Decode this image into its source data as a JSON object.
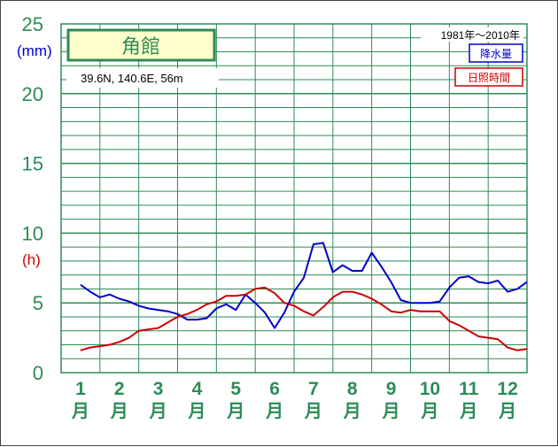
{
  "chart_data": {
    "type": "line",
    "station": "角館",
    "coordinates": "39.6N,  140.6E,  56m",
    "period": "1981年〜2010年",
    "y_ticks": [
      "0",
      "5",
      "10",
      "15",
      "20",
      "25"
    ],
    "y_unit_precip": "(mm)",
    "y_unit_sunshine": "(h)",
    "ylim": [
      0,
      25
    ],
    "categories": [
      "1",
      "2",
      "3",
      "4",
      "5",
      "6",
      "7",
      "8",
      "9",
      "10",
      "11",
      "12"
    ],
    "month_suffix": "月",
    "legend_position": "top-right",
    "grid": true,
    "series": [
      {
        "name": "降水量",
        "color": "#0000cc",
        "x": [
          1.0,
          1.25,
          1.5,
          1.75,
          2.0,
          2.25,
          2.5,
          2.75,
          3.0,
          3.25,
          3.5,
          3.75,
          4.0,
          4.25,
          4.5,
          4.75,
          5.0,
          5.25,
          5.5,
          5.75,
          6.0,
          6.25,
          6.5,
          6.75,
          7.0,
          7.25,
          7.5,
          7.75,
          8.0,
          8.25,
          8.5,
          8.75,
          9.0,
          9.25,
          9.5,
          9.75,
          10.0,
          10.25,
          10.5,
          10.75,
          11.0,
          11.25,
          11.5,
          11.75,
          12.0,
          12.25,
          12.5
        ],
        "values": [
          6.3,
          5.8,
          5.4,
          5.6,
          5.3,
          5.1,
          4.8,
          4.6,
          4.5,
          4.4,
          4.2,
          3.8,
          3.8,
          3.9,
          4.6,
          4.9,
          4.5,
          5.6,
          5.0,
          4.3,
          3.2,
          4.3,
          5.8,
          6.8,
          9.2,
          9.3,
          7.2,
          7.7,
          7.3,
          7.3,
          8.6,
          7.6,
          6.5,
          5.2,
          5.0,
          5.0,
          5.0,
          5.1,
          6.1,
          6.8,
          6.9,
          6.5,
          6.4,
          6.6,
          5.8,
          6.0,
          6.5
        ]
      },
      {
        "name": "日照時間",
        "color": "#cc0000",
        "x": [
          1.0,
          1.25,
          1.5,
          1.75,
          2.0,
          2.25,
          2.5,
          2.75,
          3.0,
          3.25,
          3.5,
          3.75,
          4.0,
          4.25,
          4.5,
          4.75,
          5.0,
          5.25,
          5.5,
          5.75,
          6.0,
          6.25,
          6.5,
          6.75,
          7.0,
          7.25,
          7.5,
          7.75,
          8.0,
          8.25,
          8.5,
          8.75,
          9.0,
          9.25,
          9.5,
          9.75,
          10.0,
          10.25,
          10.5,
          10.75,
          11.0,
          11.25,
          11.5,
          11.75,
          12.0,
          12.25,
          12.5
        ],
        "values": [
          1.6,
          1.8,
          1.9,
          2.0,
          2.2,
          2.5,
          3.0,
          3.1,
          3.2,
          3.6,
          4.0,
          4.2,
          4.5,
          4.9,
          5.1,
          5.5,
          5.5,
          5.6,
          6.0,
          6.1,
          5.7,
          5.0,
          4.8,
          4.4,
          4.1,
          4.7,
          5.4,
          5.8,
          5.8,
          5.6,
          5.3,
          4.9,
          4.4,
          4.3,
          4.5,
          4.4,
          4.4,
          4.4,
          3.7,
          3.4,
          3.0,
          2.6,
          2.5,
          2.4,
          1.8,
          1.6,
          1.7
        ]
      }
    ]
  }
}
